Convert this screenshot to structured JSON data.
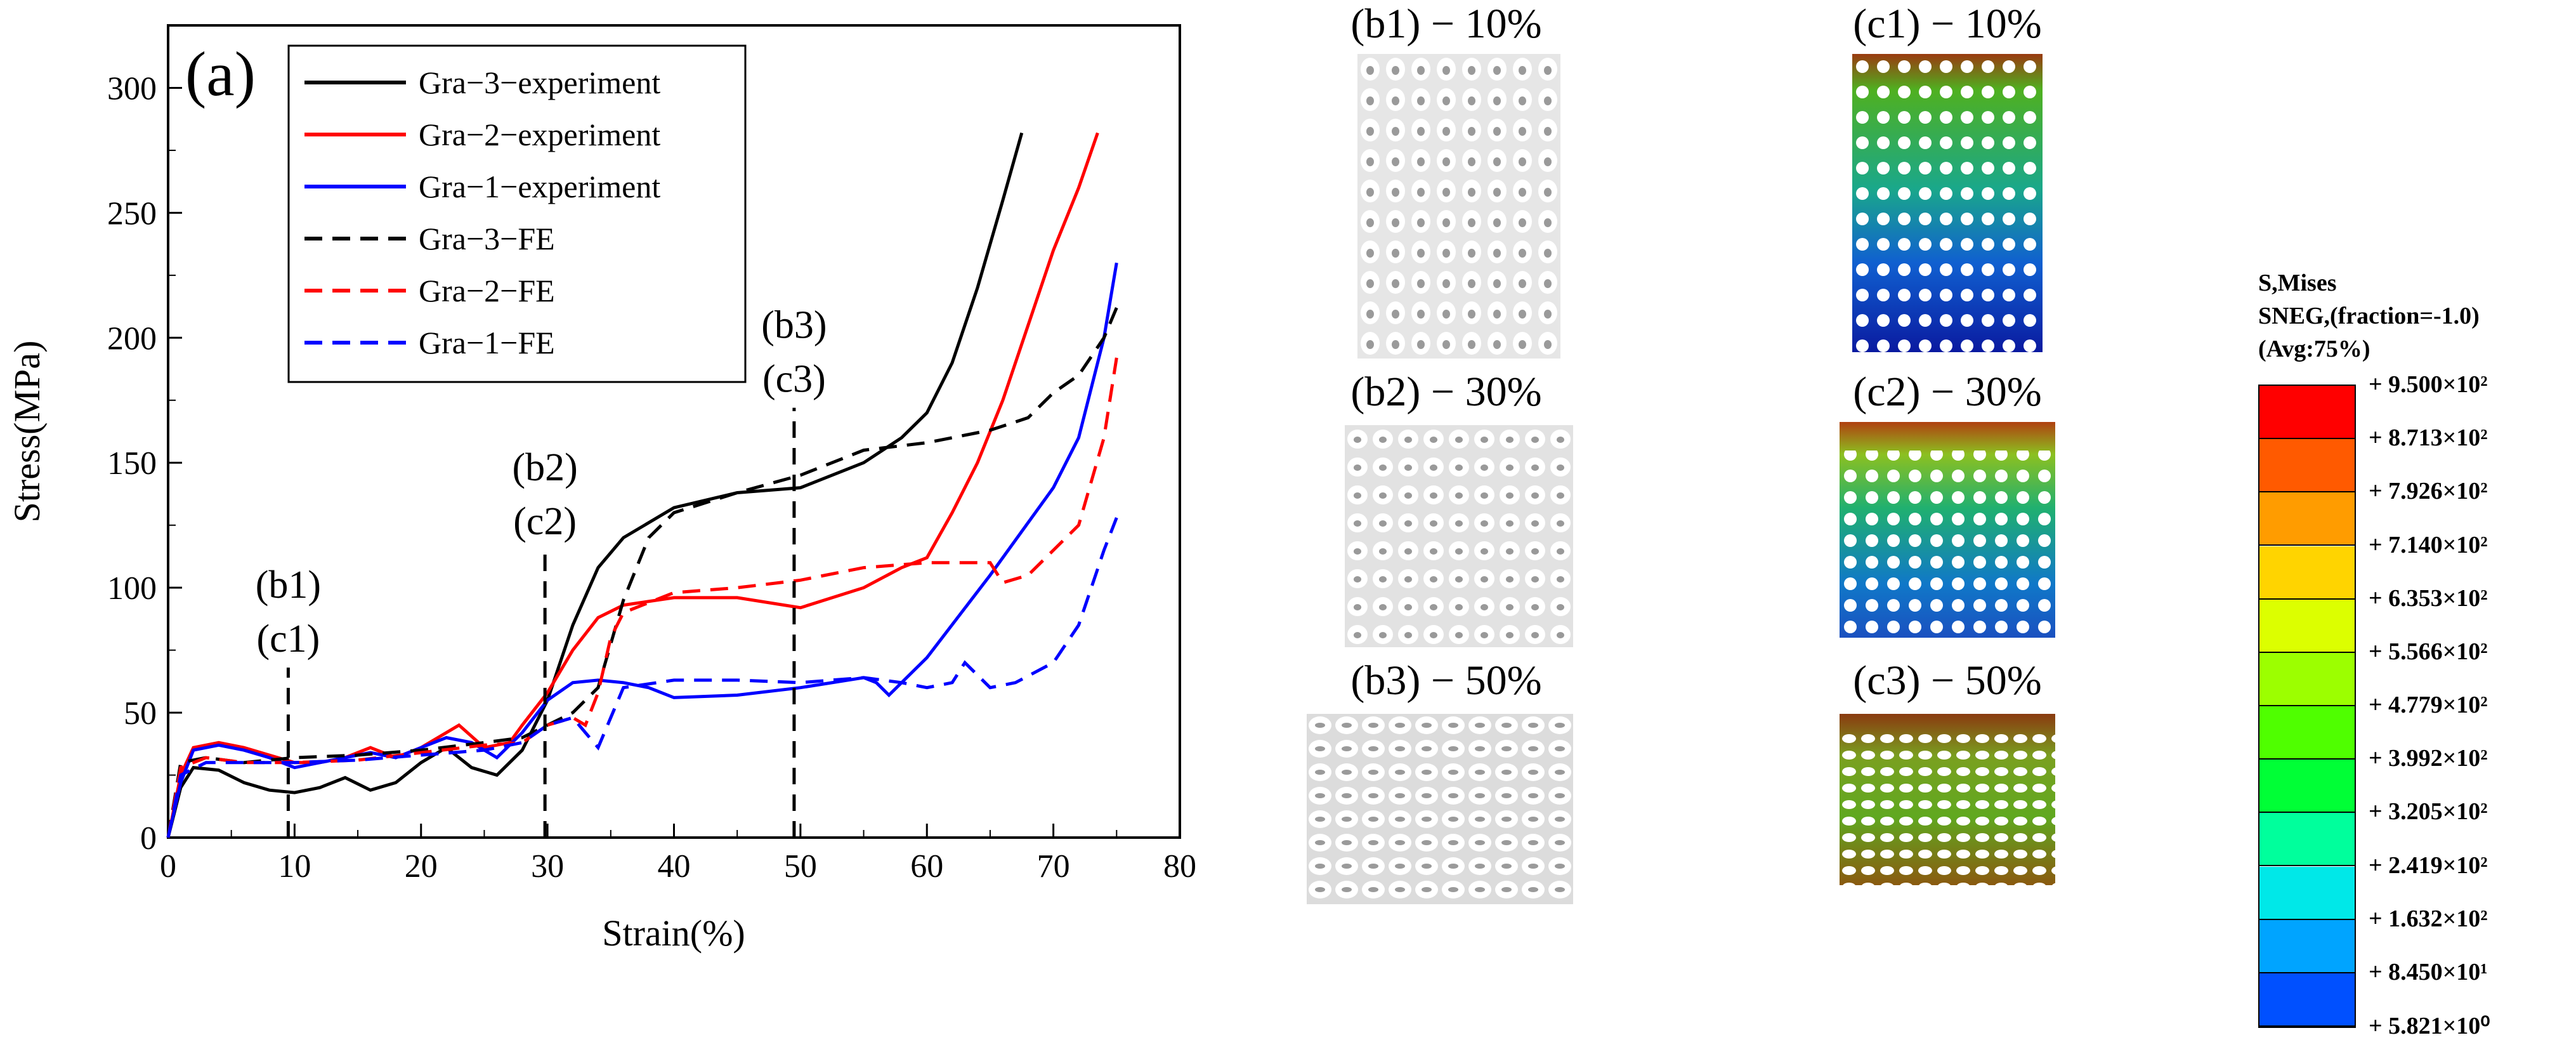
{
  "chart_data": {
    "type": "line",
    "panel_label": "(a)",
    "xlabel": "Strain(%)",
    "ylabel": "Stress(MPa)",
    "xlim": [
      0,
      80
    ],
    "ylim": [
      0,
      325
    ],
    "xticks": [
      0,
      10,
      20,
      30,
      40,
      50,
      60,
      70,
      80
    ],
    "yticks": [
      0,
      50,
      100,
      150,
      200,
      250,
      300
    ],
    "grid": false,
    "legend_position": "top-center",
    "series": [
      {
        "name": "Gra−3−experiment",
        "color": "#000000",
        "dash": "solid",
        "x": [
          0,
          1,
          2,
          4,
          6,
          8,
          10,
          12,
          14,
          16,
          18,
          20,
          22,
          24,
          26,
          28,
          30,
          32,
          34,
          36,
          40,
          45,
          50,
          55,
          58,
          60,
          62,
          64,
          66,
          67.5
        ],
        "y": [
          0,
          20,
          28,
          27,
          22,
          19,
          18,
          20,
          24,
          19,
          22,
          30,
          36,
          28,
          25,
          35,
          55,
          85,
          108,
          120,
          132,
          138,
          140,
          150,
          160,
          170,
          190,
          220,
          255,
          282
        ]
      },
      {
        "name": "Gra−2−experiment",
        "color": "#ff0000",
        "dash": "solid",
        "x": [
          0,
          1,
          2,
          4,
          6,
          8,
          10,
          12,
          14,
          16,
          18,
          20,
          22,
          23,
          25,
          27,
          28,
          30,
          32,
          34,
          36,
          40,
          45,
          50,
          55,
          58,
          60,
          62,
          64,
          66,
          68,
          70,
          72,
          73.5
        ],
        "y": [
          0,
          25,
          36,
          38,
          36,
          33,
          30,
          30,
          32,
          36,
          32,
          36,
          42,
          45,
          36,
          38,
          45,
          58,
          75,
          88,
          93,
          96,
          96,
          92,
          100,
          108,
          112,
          130,
          150,
          175,
          205,
          235,
          260,
          282
        ]
      },
      {
        "name": "Gra−1−experiment",
        "color": "#0000ff",
        "dash": "solid",
        "x": [
          0,
          1,
          2,
          4,
          6,
          8,
          10,
          12,
          14,
          16,
          18,
          20,
          22,
          24,
          26,
          28,
          30,
          32,
          34,
          36,
          38,
          40,
          45,
          50,
          55,
          56,
          57,
          60,
          65,
          70,
          72,
          74,
          75
        ],
        "y": [
          0,
          22,
          35,
          37,
          35,
          32,
          28,
          30,
          32,
          34,
          32,
          36,
          40,
          38,
          32,
          42,
          55,
          62,
          63,
          62,
          60,
          56,
          57,
          60,
          64,
          62,
          57,
          72,
          105,
          140,
          160,
          200,
          230
        ]
      },
      {
        "name": "Gra−3−FE",
        "color": "#000000",
        "dash": "dashed",
        "x": [
          0,
          1,
          3,
          6,
          10,
          15,
          20,
          25,
          28,
          30,
          32,
          34,
          36,
          38,
          40,
          45,
          50,
          55,
          60,
          65,
          68,
          70,
          72,
          74,
          75
        ],
        "y": [
          0,
          30,
          32,
          30,
          32,
          33,
          35,
          38,
          40,
          45,
          50,
          60,
          95,
          120,
          130,
          138,
          145,
          155,
          158,
          163,
          168,
          178,
          185,
          200,
          212
        ]
      },
      {
        "name": "Gra−2−FE",
        "color": "#ff0000",
        "dash": "dashed",
        "x": [
          0,
          1,
          3,
          6,
          10,
          15,
          20,
          25,
          28,
          30,
          32,
          33,
          34,
          35,
          36,
          40,
          45,
          50,
          55,
          60,
          65,
          66,
          68,
          70,
          72,
          74,
          75
        ],
        "y": [
          0,
          28,
          32,
          30,
          30,
          31,
          34,
          37,
          38,
          45,
          48,
          45,
          58,
          80,
          90,
          98,
          100,
          103,
          108,
          110,
          110,
          102,
          105,
          115,
          125,
          160,
          192
        ]
      },
      {
        "name": "Gra−1−FE",
        "color": "#0000ff",
        "dash": "dashed",
        "x": [
          0,
          1,
          3,
          6,
          10,
          15,
          20,
          25,
          28,
          30,
          32,
          33,
          34,
          35,
          36,
          40,
          45,
          50,
          55,
          58,
          60,
          62,
          63,
          65,
          67,
          70,
          72,
          74,
          75
        ],
        "y": [
          0,
          25,
          30,
          30,
          30,
          31,
          33,
          35,
          38,
          45,
          48,
          42,
          36,
          48,
          60,
          63,
          63,
          62,
          64,
          62,
          60,
          62,
          70,
          60,
          62,
          70,
          85,
          115,
          128
        ]
      }
    ],
    "annotations": [
      {
        "x": 9.5,
        "label1": "(b1)",
        "label2": "(c1)"
      },
      {
        "x": 29.8,
        "label1": "(b2)",
        "label2": "(c2)"
      },
      {
        "x": 49.5,
        "label1": "(b3)",
        "label2": "(c3)"
      }
    ]
  },
  "panels": {
    "b1": "(b1) − 10%",
    "b2": "(b2) − 30%",
    "b3": "(b3) − 50%",
    "c1": "(c1) − 10%",
    "c2": "(c2) − 30%",
    "c3": "(c3) − 50%"
  },
  "contour_legend": {
    "header1": "S,Mises",
    "header2": "SNEG,(fraction=-1.0)",
    "header3": "(Avg:75%)",
    "levels": [
      "+ 9.500×10²",
      "+ 8.713×10²",
      "+ 7.926×10²",
      "+ 7.140×10²",
      "+ 6.353×10²",
      "+ 5.566×10²",
      "+ 4.779×10²",
      "+ 3.992×10²",
      "+ 3.205×10²",
      "+ 2.419×10²",
      "+ 1.632×10²",
      "+ 8.450×10¹",
      "+ 5.821×10⁰"
    ],
    "colors": [
      "#ff0000",
      "#ff5a00",
      "#ff9c00",
      "#ffd400",
      "#dcff00",
      "#9cff00",
      "#4fff00",
      "#00ff36",
      "#00ff9c",
      "#00e8e8",
      "#00a4ff",
      "#0050ff",
      "#0000ff"
    ]
  }
}
